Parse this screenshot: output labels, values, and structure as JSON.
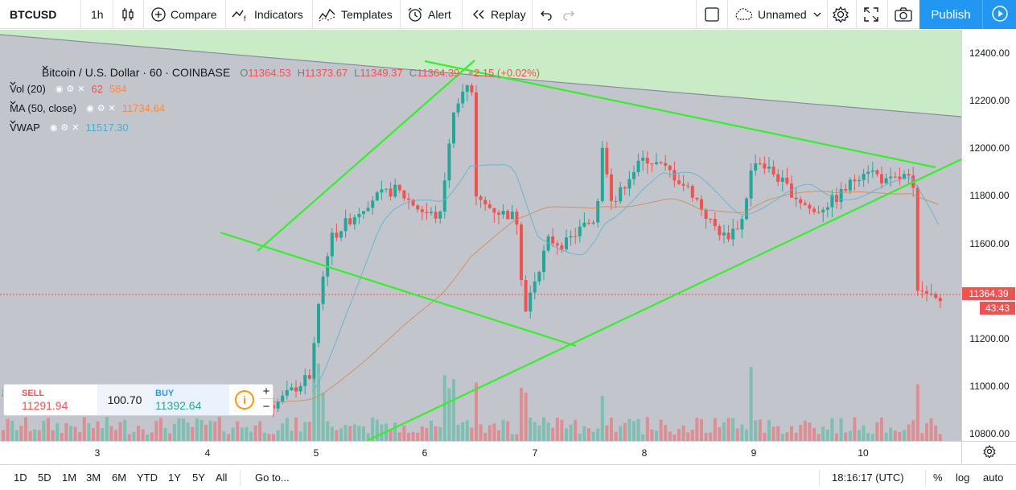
{
  "toolbar": {
    "symbol": "BTCUSD",
    "interval": "1h",
    "compare": "Compare",
    "indicators": "Indicators",
    "templates": "Templates",
    "alert": "Alert",
    "replay": "Replay",
    "layout_name": "Unnamed",
    "publish": "Publish"
  },
  "legend": {
    "title": "Bitcoin / U.S. Dollar · 60 · COINBASE",
    "open_label": "O",
    "open": "11364.53",
    "high_label": "H",
    "high": "11373.67",
    "low_label": "L",
    "low": "11349.37",
    "close_label": "C",
    "close": "11364.39",
    "change": "+2.15 (+0.02%)",
    "vol_label": "Vol (20)",
    "vol_value": "62",
    "vol_ma": "584",
    "ma_label": "MA (50, close)",
    "ma_value": "11734.64",
    "vwap_label": "VWAP",
    "vwap_value": "11517.30"
  },
  "price_axis": {
    "ticks": [
      "12400.00",
      "12200.00",
      "12000.00",
      "11800.00",
      "11600.00",
      "11400.00",
      "11200.00",
      "11000.00",
      "10800.00"
    ],
    "last_price": "11364.39",
    "countdown": "43:43"
  },
  "time_axis": {
    "ticks": [
      "3",
      "4",
      "5",
      "6",
      "7",
      "8",
      "9",
      "10"
    ]
  },
  "trade": {
    "sell_label": "SELL",
    "sell_price": "11291.94",
    "spread": "100.70",
    "buy_label": "BUY",
    "buy_price": "11392.64",
    "info": "i",
    "plus": "+",
    "minus": "−"
  },
  "bottom_bar": {
    "ranges": [
      "1D",
      "5D",
      "1M",
      "3M",
      "6M",
      "YTD",
      "1Y",
      "5Y",
      "All"
    ],
    "goto": "Go to...",
    "clock": "18:16:17 (UTC)",
    "percent": "%",
    "log": "log",
    "auto": "auto"
  },
  "colors": {
    "up": "#26a69a",
    "down": "#ef5350",
    "trendline": "#37ee2d",
    "ma": "#d08a54",
    "vwap": "#5cb6ce",
    "accent": "#2196f3",
    "zone_fill": "#c9ecc7",
    "chart_bg": "#c3c5cc"
  },
  "chart_data": {
    "type": "candlestick",
    "y_range": [
      10720,
      12520
    ],
    "x_ticks": [
      "3",
      "4",
      "5",
      "6",
      "7",
      "8",
      "9",
      "10"
    ],
    "last_price": 11364.39,
    "key_prices": {
      "spike_high": 12320,
      "dip_low": 11220,
      "recent_high": 11960,
      "drop_low": 11250
    },
    "indicators": {
      "ma_50": 11734.64,
      "vwap": 11517.3
    }
  }
}
